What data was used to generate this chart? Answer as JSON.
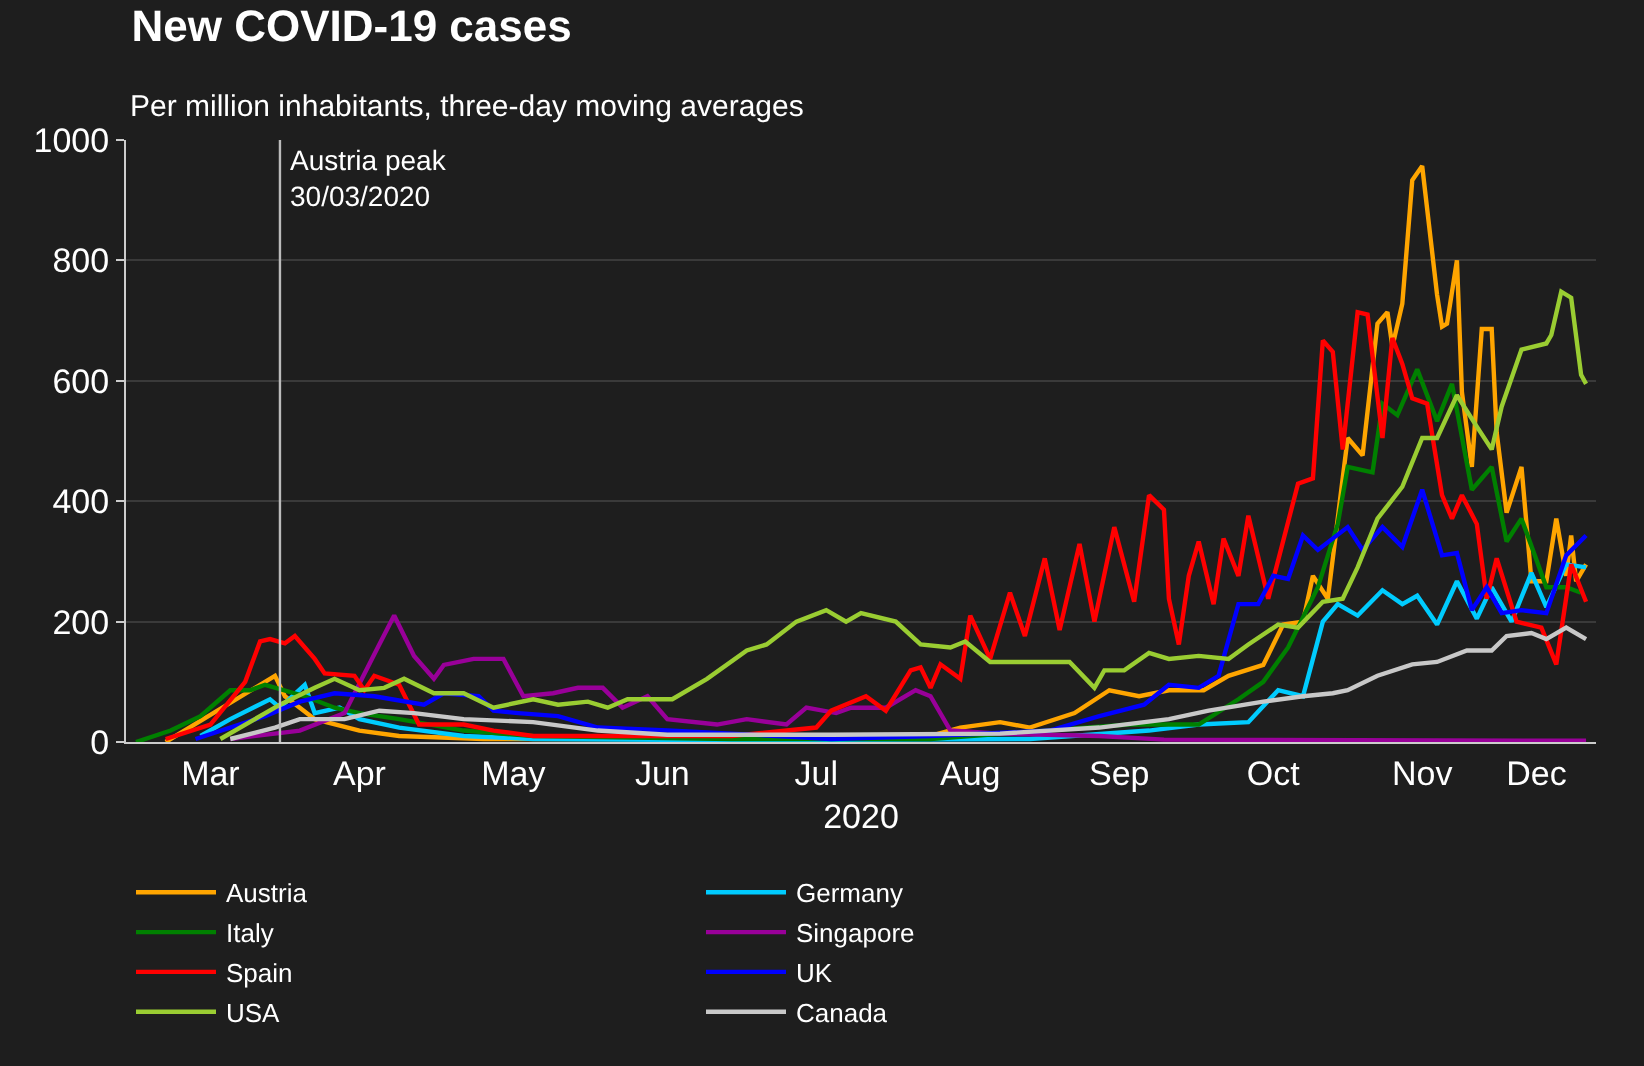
{
  "chart_data": {
    "type": "line",
    "title": "New COVID-19 cases",
    "subtitle": "Per million inhabitants, three-day moving averages",
    "xlabel": "2020",
    "xlim": [
      "2020-02-28",
      "2020-12-20"
    ],
    "xticks": [
      {
        "value": "2020-03-16",
        "label": "Mar"
      },
      {
        "value": "2020-04-15",
        "label": "Apr"
      },
      {
        "value": "2020-05-16",
        "label": "May"
      },
      {
        "value": "2020-06-15",
        "label": "Jun"
      },
      {
        "value": "2020-07-16",
        "label": "Jul"
      },
      {
        "value": "2020-08-16",
        "label": "Aug"
      },
      {
        "value": "2020-09-15",
        "label": "Sep"
      },
      {
        "value": "2020-10-16",
        "label": "Oct"
      },
      {
        "value": "2020-11-15",
        "label": "Nov"
      },
      {
        "value": "2020-12-08",
        "label": "Dec"
      }
    ],
    "ylim": [
      0,
      1000
    ],
    "yticks": [
      0,
      200,
      400,
      600,
      800,
      1000
    ],
    "grid": "y",
    "legend": "bottom",
    "marker": "none",
    "line_style": "solid",
    "ref_lines": [
      {
        "axis": "x",
        "value": "2020-03-30",
        "label": "Austria peak\n30/03/2020",
        "color": "#bbbbbb"
      }
    ],
    "series": [
      {
        "name": "Austria",
        "color": "#ffa500",
        "x": [
          "2020-03-07",
          "2020-03-29",
          "2020-03-31",
          "2020-04-06",
          "2020-04-15",
          "2020-04-23",
          "2020-05-10",
          "2020-06-29",
          "2020-08-08",
          "2020-08-14",
          "2020-08-22",
          "2020-08-28",
          "2020-09-06",
          "2020-09-13",
          "2020-09-19",
          "2020-09-25",
          "2020-10-02",
          "2020-10-07",
          "2020-10-14",
          "2020-10-18",
          "2020-10-22",
          "2020-10-24",
          "2020-10-27",
          "2020-10-31",
          "2020-11-03",
          "2020-11-06",
          "2020-11-08",
          "2020-11-09",
          "2020-11-11",
          "2020-11-13",
          "2020-11-15",
          "2020-11-18",
          "2020-11-19",
          "2020-11-20",
          "2020-11-22",
          "2020-11-23",
          "2020-11-25",
          "2020-11-27",
          "2020-11-29",
          "2020-11-30",
          "2020-12-02",
          "2020-12-05",
          "2020-12-07",
          "2020-12-10",
          "2020-12-12",
          "2020-12-14",
          "2020-12-15",
          "2020-12-16",
          "2020-12-18"
        ],
        "values": [
          0,
          110,
          76,
          38,
          19,
          10,
          5,
          5,
          10,
          24,
          33,
          24,
          48,
          86,
          76,
          86,
          86,
          110,
          128,
          195,
          200,
          276,
          238,
          505,
          476,
          695,
          714,
          657,
          728,
          933,
          957,
          743,
          690,
          695,
          800,
          581,
          457,
          686,
          686,
          514,
          381,
          457,
          267,
          267,
          371,
          276,
          343,
          267,
          295
        ]
      },
      {
        "name": "Germany",
        "color": "#00ccff",
        "x": [
          "2020-03-14",
          "2020-03-20",
          "2020-03-28",
          "2020-03-30",
          "2020-04-04",
          "2020-04-06",
          "2020-04-11",
          "2020-04-15",
          "2020-04-23",
          "2020-05-06",
          "2020-05-20",
          "2020-06-29",
          "2020-08-28",
          "2020-09-21",
          "2020-10-01",
          "2020-10-11",
          "2020-10-17",
          "2020-10-22",
          "2020-10-26",
          "2020-10-29",
          "2020-11-02",
          "2020-11-07",
          "2020-11-11",
          "2020-11-14",
          "2020-11-18",
          "2020-11-22",
          "2020-11-26",
          "2020-11-29",
          "2020-12-03",
          "2020-12-07",
          "2020-12-10",
          "2020-12-14",
          "2020-12-18"
        ],
        "values": [
          10,
          38,
          71,
          57,
          95,
          48,
          57,
          38,
          24,
          10,
          5,
          3,
          5,
          19,
          29,
          33,
          86,
          76,
          200,
          229,
          210,
          252,
          229,
          243,
          195,
          267,
          205,
          257,
          200,
          281,
          224,
          295,
          290
        ]
      },
      {
        "name": "Italy",
        "color": "#008000",
        "x": [
          "2020-03-01",
          "2020-03-08",
          "2020-03-14",
          "2020-03-20",
          "2020-03-24",
          "2020-03-27",
          "2020-04-04",
          "2020-04-10",
          "2020-04-15",
          "2020-04-23",
          "2020-05-06",
          "2020-05-20",
          "2020-06-29",
          "2020-08-08",
          "2020-09-17",
          "2020-10-01",
          "2020-10-09",
          "2020-10-14",
          "2020-10-19",
          "2020-10-25",
          "2020-10-29",
          "2020-10-31",
          "2020-11-05",
          "2020-11-07",
          "2020-11-10",
          "2020-11-14",
          "2020-11-18",
          "2020-11-21",
          "2020-11-25",
          "2020-11-29",
          "2020-12-02",
          "2020-12-05",
          "2020-12-10",
          "2020-12-14",
          "2020-12-17"
        ],
        "values": [
          0,
          19,
          43,
          86,
          86,
          95,
          76,
          57,
          48,
          38,
          19,
          10,
          5,
          5,
          29,
          29,
          71,
          100,
          157,
          257,
          362,
          457,
          448,
          562,
          543,
          619,
          533,
          595,
          419,
          457,
          333,
          371,
          257,
          257,
          248
        ]
      },
      {
        "name": "Singapore",
        "color": "#990099",
        "x": [
          "2020-03-20",
          "2020-04-03",
          "2020-04-12",
          "2020-04-19",
          "2020-04-22",
          "2020-04-26",
          "2020-04-30",
          "2020-05-02",
          "2020-05-08",
          "2020-05-14",
          "2020-05-18",
          "2020-05-24",
          "2020-05-29",
          "2020-06-03",
          "2020-06-07",
          "2020-06-12",
          "2020-06-16",
          "2020-06-26",
          "2020-07-02",
          "2020-07-10",
          "2020-07-14",
          "2020-07-20",
          "2020-07-23",
          "2020-07-30",
          "2020-08-05",
          "2020-08-08",
          "2020-08-12",
          "2020-08-22",
          "2020-09-11",
          "2020-09-24",
          "2020-12-18"
        ],
        "values": [
          5,
          19,
          48,
          162,
          210,
          143,
          105,
          128,
          138,
          138,
          76,
          81,
          90,
          90,
          57,
          76,
          38,
          29,
          38,
          29,
          57,
          48,
          57,
          57,
          86,
          76,
          19,
          14,
          10,
          4,
          2
        ]
      },
      {
        "name": "Spain",
        "color": "#ff0000",
        "x": [
          "2020-03-07",
          "2020-03-16",
          "2020-03-23",
          "2020-03-26",
          "2020-03-28",
          "2020-03-31",
          "2020-04-02",
          "2020-04-06",
          "2020-04-08",
          "2020-04-14",
          "2020-04-16",
          "2020-04-18",
          "2020-04-23",
          "2020-04-27",
          "2020-05-06",
          "2020-05-12",
          "2020-05-20",
          "2020-06-29",
          "2020-07-16",
          "2020-07-19",
          "2020-07-26",
          "2020-07-30",
          "2020-08-04",
          "2020-08-06",
          "2020-08-08",
          "2020-08-10",
          "2020-08-14",
          "2020-08-16",
          "2020-08-20",
          "2020-08-24",
          "2020-08-27",
          "2020-08-31",
          "2020-09-03",
          "2020-09-07",
          "2020-09-10",
          "2020-09-14",
          "2020-09-18",
          "2020-09-21",
          "2020-09-24",
          "2020-09-25",
          "2020-09-27",
          "2020-09-29",
          "2020-10-01",
          "2020-10-04",
          "2020-10-06",
          "2020-10-09",
          "2020-10-11",
          "2020-10-15",
          "2020-10-21",
          "2020-10-24",
          "2020-10-26",
          "2020-10-28",
          "2020-10-30",
          "2020-11-02",
          "2020-11-04",
          "2020-11-07",
          "2020-11-09",
          "2020-11-11",
          "2020-11-13",
          "2020-11-16",
          "2020-11-19",
          "2020-11-21",
          "2020-11-23",
          "2020-11-26",
          "2020-11-28",
          "2020-11-30",
          "2020-12-04",
          "2020-12-09",
          "2020-12-12",
          "2020-12-15",
          "2020-12-18"
        ],
        "values": [
          5,
          29,
          100,
          167,
          171,
          164,
          176,
          138,
          114,
          110,
          86,
          110,
          95,
          29,
          29,
          19,
          10,
          10,
          24,
          52,
          76,
          52,
          119,
          124,
          90,
          129,
          105,
          210,
          138,
          248,
          176,
          305,
          186,
          329,
          200,
          357,
          233,
          410,
          386,
          238,
          162,
          276,
          333,
          229,
          338,
          276,
          376,
          238,
          429,
          438,
          667,
          648,
          486,
          714,
          710,
          505,
          671,
          628,
          571,
          562,
          410,
          371,
          410,
          362,
          238,
          305,
          200,
          190,
          129,
          295,
          233
        ]
      },
      {
        "name": "UK",
        "color": "#0000ff",
        "x": [
          "2020-03-13",
          "2020-03-27",
          "2020-04-03",
          "2020-04-10",
          "2020-04-18",
          "2020-04-28",
          "2020-05-02",
          "2020-05-09",
          "2020-05-12",
          "2020-05-17",
          "2020-05-25",
          "2020-06-02",
          "2020-06-16",
          "2020-06-29",
          "2020-07-19",
          "2020-08-08",
          "2020-09-01",
          "2020-09-11",
          "2020-09-20",
          "2020-09-25",
          "2020-10-01",
          "2020-10-05",
          "2020-10-09",
          "2020-10-13",
          "2020-10-16",
          "2020-10-19",
          "2020-10-22",
          "2020-10-25",
          "2020-10-31",
          "2020-11-03",
          "2020-11-07",
          "2020-11-11",
          "2020-11-15",
          "2020-11-19",
          "2020-11-22",
          "2020-11-25",
          "2020-11-28",
          "2020-12-01",
          "2020-12-05",
          "2020-12-10",
          "2020-12-14",
          "2020-12-18"
        ],
        "values": [
          5,
          43,
          67,
          81,
          76,
          62,
          81,
          76,
          52,
          48,
          43,
          24,
          19,
          14,
          5,
          10,
          19,
          43,
          62,
          95,
          90,
          110,
          229,
          229,
          276,
          271,
          343,
          319,
          357,
          319,
          357,
          324,
          419,
          310,
          314,
          219,
          257,
          214,
          219,
          214,
          310,
          343
        ]
      },
      {
        "name": "USA",
        "color": "#9acd32",
        "x": [
          "2020-03-18",
          "2020-03-30",
          "2020-04-06",
          "2020-04-10",
          "2020-04-15",
          "2020-04-20",
          "2020-04-24",
          "2020-04-30",
          "2020-05-06",
          "2020-05-12",
          "2020-05-20",
          "2020-05-25",
          "2020-05-31",
          "2020-06-04",
          "2020-06-08",
          "2020-06-17",
          "2020-06-24",
          "2020-07-02",
          "2020-07-06",
          "2020-07-12",
          "2020-07-18",
          "2020-07-22",
          "2020-07-25",
          "2020-08-01",
          "2020-08-06",
          "2020-08-12",
          "2020-08-15",
          "2020-08-20",
          "2020-08-30",
          "2020-09-05",
          "2020-09-10",
          "2020-09-12",
          "2020-09-16",
          "2020-09-21",
          "2020-09-25",
          "2020-10-01",
          "2020-10-07",
          "2020-10-11",
          "2020-10-17",
          "2020-10-21",
          "2020-10-26",
          "2020-10-30",
          "2020-11-02",
          "2020-11-06",
          "2020-11-11",
          "2020-11-15",
          "2020-11-18",
          "2020-11-22",
          "2020-11-26",
          "2020-11-29",
          "2020-12-01",
          "2020-12-05",
          "2020-12-10",
          "2020-12-11",
          "2020-12-13",
          "2020-12-15",
          "2020-12-17",
          "2020-12-18"
        ],
        "values": [
          5,
          62,
          90,
          105,
          86,
          90,
          105,
          81,
          81,
          57,
          71,
          62,
          67,
          57,
          71,
          71,
          105,
          152,
          162,
          200,
          219,
          200,
          214,
          200,
          162,
          157,
          167,
          133,
          133,
          133,
          90,
          119,
          119,
          148,
          138,
          143,
          138,
          162,
          195,
          190,
          233,
          238,
          290,
          371,
          424,
          505,
          505,
          576,
          524,
          486,
          557,
          652,
          662,
          676,
          748,
          738,
          610,
          595
        ]
      },
      {
        "name": "Canada",
        "color": "#c8c8c8",
        "x": [
          "2020-03-20",
          "2020-03-29",
          "2020-04-03",
          "2020-04-12",
          "2020-04-19",
          "2020-04-26",
          "2020-05-06",
          "2020-05-20",
          "2020-06-02",
          "2020-06-16",
          "2020-07-19",
          "2020-08-22",
          "2020-09-11",
          "2020-09-25",
          "2020-10-03",
          "2020-10-14",
          "2020-10-22",
          "2020-10-28",
          "2020-10-31",
          "2020-11-06",
          "2020-11-13",
          "2020-11-18",
          "2020-11-24",
          "2020-11-29",
          "2020-12-02",
          "2020-12-07",
          "2020-12-10",
          "2020-12-14",
          "2020-12-18"
        ],
        "values": [
          5,
          24,
          38,
          38,
          52,
          48,
          38,
          33,
          19,
          12,
          12,
          14,
          24,
          38,
          52,
          67,
          76,
          81,
          86,
          110,
          129,
          133,
          152,
          152,
          176,
          181,
          171,
          190,
          171
        ]
      }
    ]
  }
}
